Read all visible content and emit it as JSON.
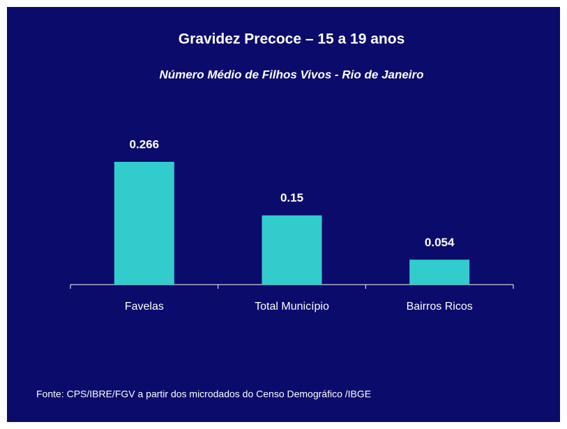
{
  "chart_data": {
    "type": "bar",
    "title": "Gravidez Precoce – 15 a 19 anos",
    "subtitle": "Número Médio de Filhos Vivos - Rio de Janeiro",
    "categories": [
      "Favelas",
      "Total Município",
      "Bairros Ricos"
    ],
    "values": [
      0.266,
      0.15,
      0.054
    ],
    "color": "#33cccc",
    "source": "Fonte: CPS/IBRE/FGV a partir dos microdados do Censo Demográfico /IBGE"
  }
}
